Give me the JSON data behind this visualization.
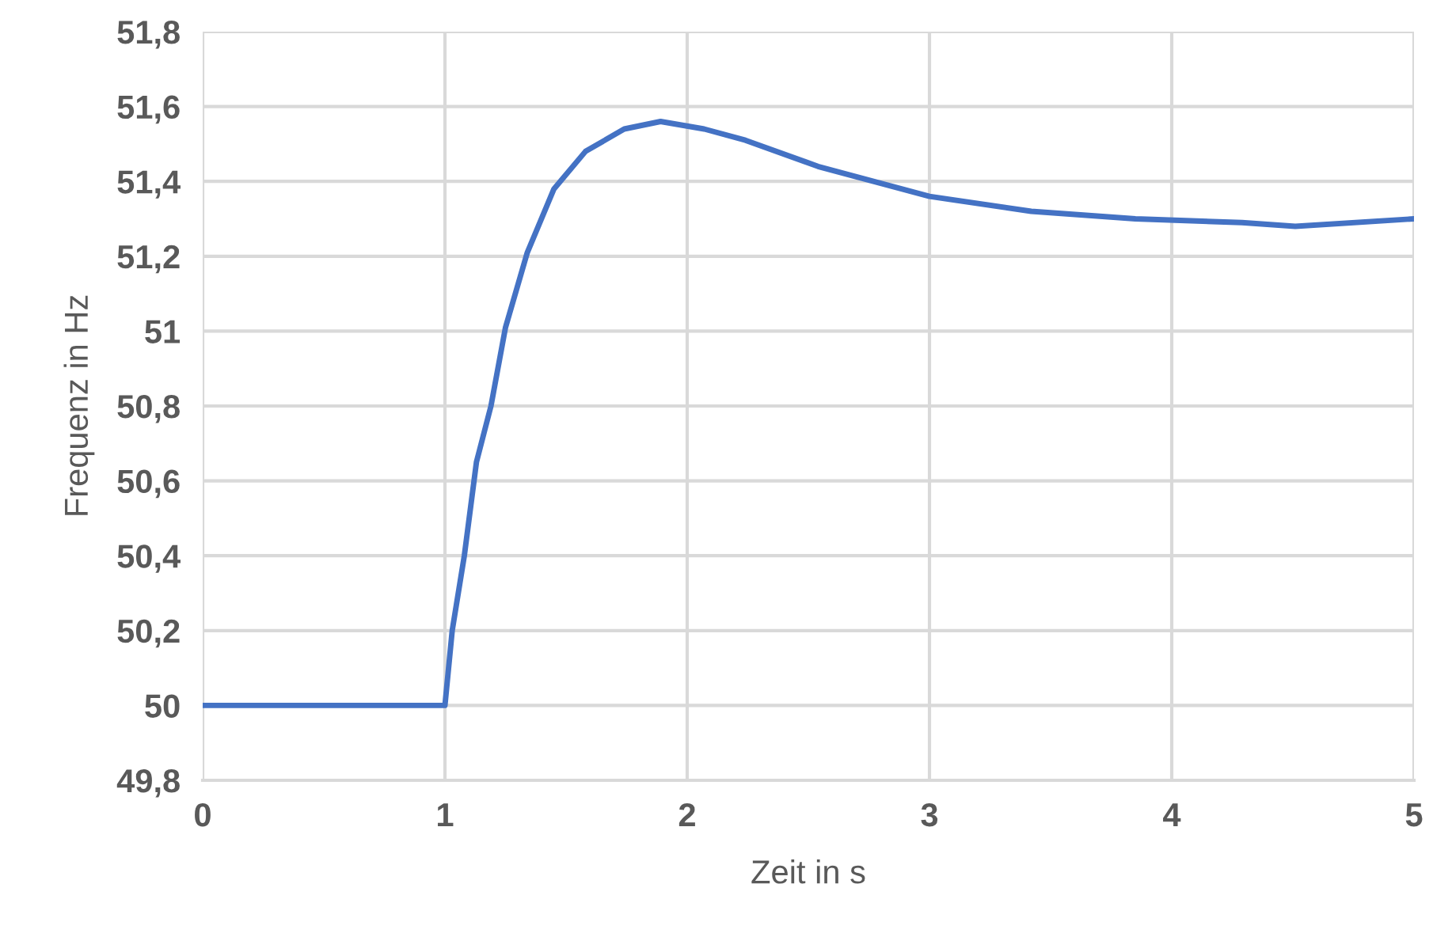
{
  "chart_data": {
    "type": "line",
    "xlabel": "Zeit in s",
    "ylabel": "Frequenz in Hz",
    "series": [
      {
        "color": "#4472c4",
        "x": [
          0,
          1,
          1.03,
          1.08,
          1.13,
          1.19,
          1.25,
          1.34,
          1.45,
          1.58,
          1.74,
          1.89,
          2.07,
          2.24,
          2.54,
          3,
          3.42,
          3.85,
          4.29,
          4.51,
          5
        ],
        "values": [
          50,
          50,
          50.2,
          50.4,
          50.65,
          50.8,
          51.01,
          51.21,
          51.38,
          51.48,
          51.54,
          51.56,
          51.54,
          51.51,
          51.44,
          51.36,
          51.32,
          51.3,
          51.29,
          51.28,
          51.3
        ]
      }
    ],
    "xlim": [
      0,
      5
    ],
    "xticks": [
      0,
      1,
      2,
      3,
      4,
      5
    ],
    "ylim": [
      49.8,
      51.8
    ],
    "yticks": [
      {
        "value": 49.8,
        "label": "49,8"
      },
      {
        "value": 50,
        "label": "50"
      },
      {
        "value": 50.2,
        "label": "50,2"
      },
      {
        "value": 50.4,
        "label": "50,4"
      },
      {
        "value": 50.6,
        "label": "50,6"
      },
      {
        "value": 50.8,
        "label": "50,8"
      },
      {
        "value": 51,
        "label": "51"
      },
      {
        "value": 51.2,
        "label": "51,2"
      },
      {
        "value": 51.4,
        "label": "51,4"
      },
      {
        "value": 51.6,
        "label": "51,6"
      },
      {
        "value": 51.8,
        "label": "51,8"
      }
    ],
    "grid": true,
    "marker": "none",
    "line_style": "solid"
  }
}
